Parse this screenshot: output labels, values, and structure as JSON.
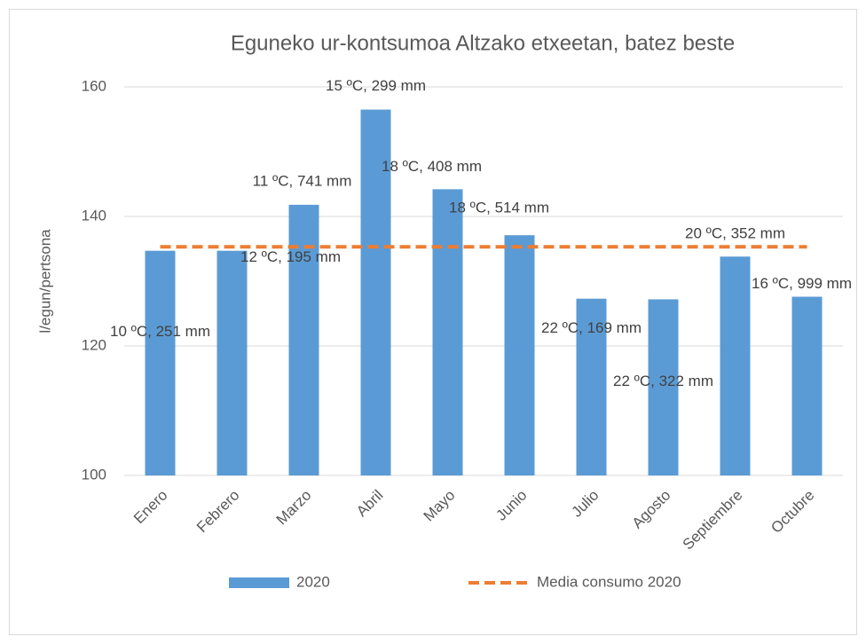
{
  "chart_data": {
    "type": "bar",
    "title": "Eguneko ur-kontsumoa Altzako etxeetan, batez beste",
    "y_label": "l/egun/pertsona",
    "categories": [
      "Enero",
      "Febrero",
      "Marzo",
      "Abril",
      "Mayo",
      "Junio",
      "Julio",
      "Agosto",
      "Septiembre",
      "Octubre"
    ],
    "series": [
      {
        "name": "2020",
        "type": "bar",
        "color": "#5b9bd5",
        "values": [
          134.7,
          134.7,
          141.8,
          156.5,
          144.2,
          137.1,
          127.3,
          127.2,
          133.8,
          127.6
        ]
      },
      {
        "name": "Media consumo 2020",
        "type": "line",
        "dashed": true,
        "color": "#ed7d31",
        "values": [
          135.3,
          135.3,
          135.3,
          135.3,
          135.3,
          135.3,
          135.3,
          135.3,
          135.3,
          135.3
        ]
      }
    ],
    "annotations": [
      "10 ºC, 251 mm",
      "12 ºC, 195 mm",
      "11 ºC, 741 mm",
      "15 ºC, 299 mm",
      "18 ºC, 408 mm",
      "18 ºC, 514 mm",
      "22 ºC, 169 mm",
      "22 ºC, 322 mm",
      "20 ºC, 352 mm",
      "16 ºC, 999 mm"
    ],
    "ylim": [
      100,
      160
    ],
    "yticks": [
      100,
      120,
      140,
      160
    ],
    "grid": true,
    "legend": "bottom"
  }
}
